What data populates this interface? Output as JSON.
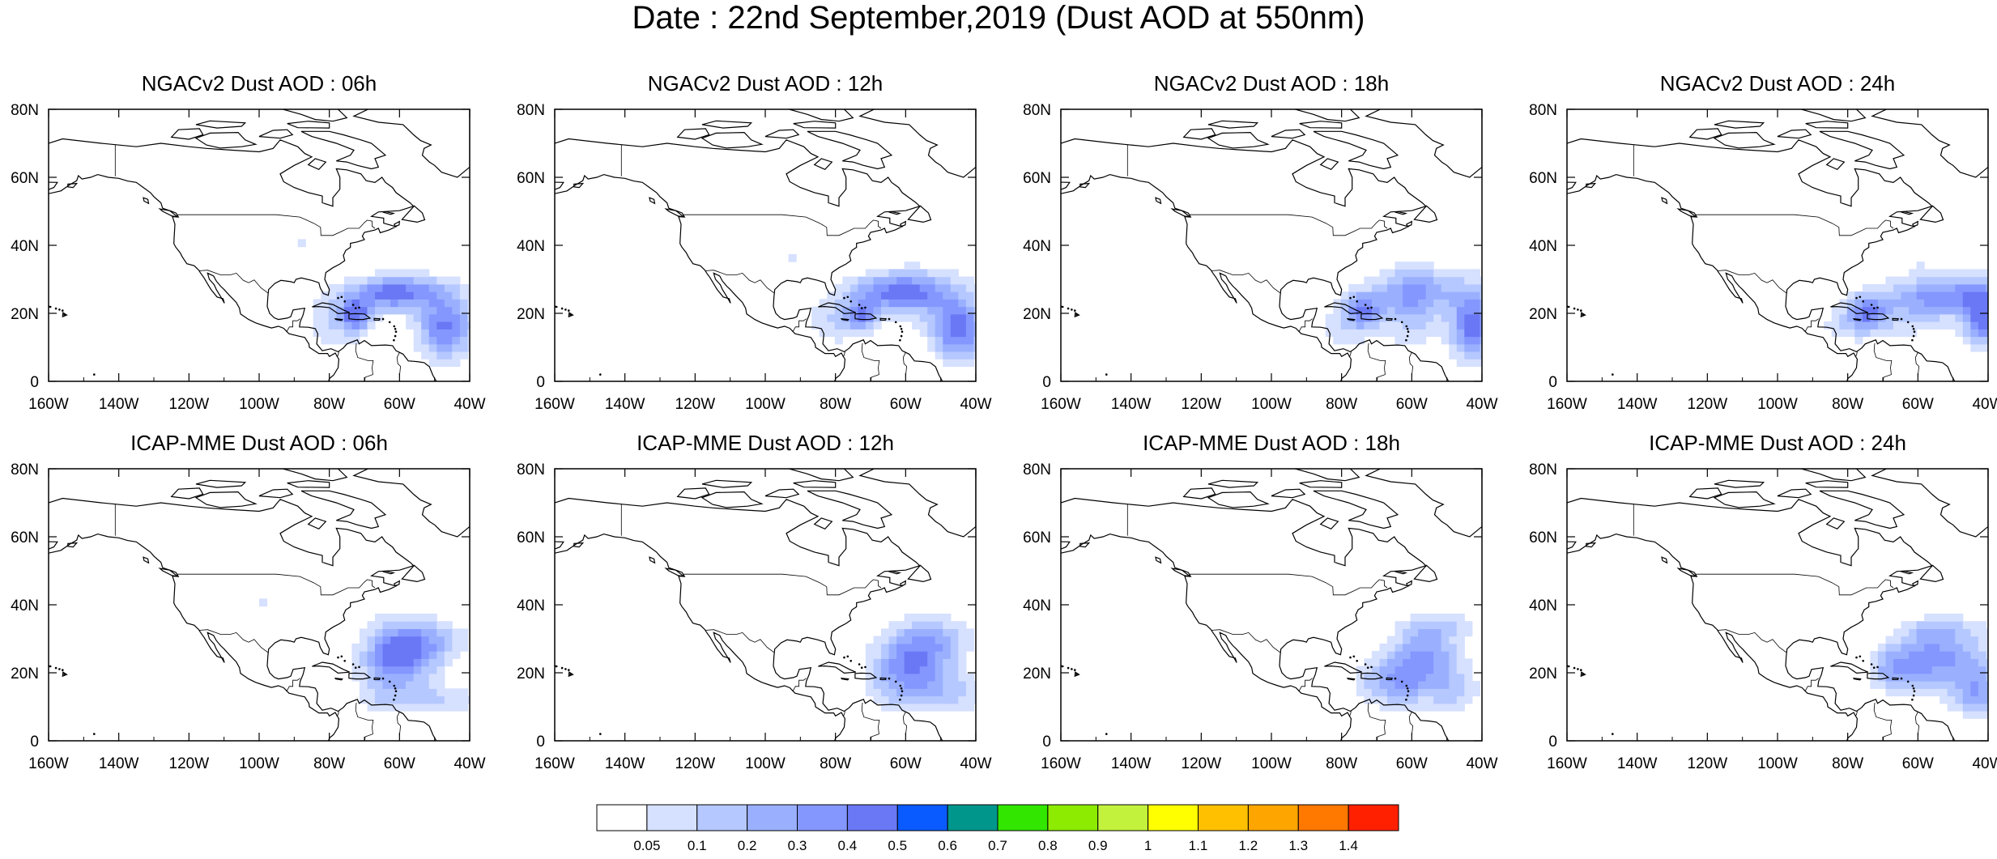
{
  "title": "Date : 22nd September,2019 (Dust AOD at 550nm)",
  "panels": [
    {
      "title": "NGACv2 Dust AOD : 06h"
    },
    {
      "title": "NGACv2 Dust AOD : 12h"
    },
    {
      "title": "NGACv2 Dust AOD : 18h"
    },
    {
      "title": "NGACv2 Dust AOD : 24h"
    },
    {
      "title": "ICAP-MME Dust AOD : 06h"
    },
    {
      "title": "ICAP-MME Dust AOD : 12h"
    },
    {
      "title": "ICAP-MME Dust AOD : 18h"
    },
    {
      "title": "ICAP-MME Dust AOD : 24h"
    }
  ],
  "map": {
    "lon_labels": [
      "160W",
      "140W",
      "120W",
      "100W",
      "80W",
      "60W",
      "40W"
    ],
    "lat_labels": [
      "0",
      "20N",
      "40N",
      "60N",
      "80N"
    ],
    "lon_range": [
      -160,
      -40
    ],
    "lat_range": [
      0,
      80
    ],
    "coastline_color": "#000000"
  },
  "colorbar": {
    "labels": [
      "0.05",
      "0.1",
      "0.2",
      "0.3",
      "0.4",
      "0.5",
      "0.6",
      "0.7",
      "0.8",
      "0.9",
      "1",
      "1.1",
      "1.2",
      "1.3",
      "1.4"
    ],
    "colors": [
      "#ffffff",
      "#d6e0ff",
      "#b5c8ff",
      "#9ab0ff",
      "#8497ff",
      "#6a78f5",
      "#0a5bff",
      "#00968c",
      "#32e600",
      "#8ceb00",
      "#c3f23c",
      "#ffff00",
      "#ffc000",
      "#ffa500",
      "#ff7800",
      "#ff2000"
    ]
  }
}
